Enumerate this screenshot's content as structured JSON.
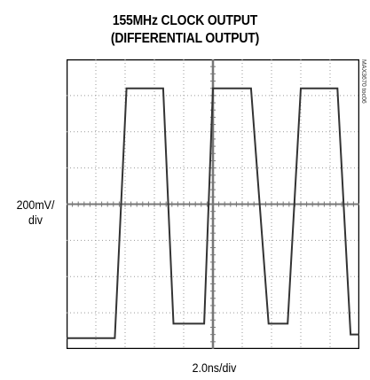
{
  "chart_data": {
    "type": "line",
    "title": "155MHz CLOCK OUTPUT",
    "subtitle": "(DIFFERENTIAL OUTPUT)",
    "ylabel": "200mV/\ndiv",
    "xlabel": "2.0ns/div",
    "watermark": "MAX3670 toc06",
    "grid": true,
    "grid_divisions": {
      "x": 10,
      "y": 8
    },
    "xlim_div": [
      0,
      10
    ],
    "ylim_div": [
      -4,
      4
    ],
    "series": [
      {
        "x_div": [
          0,
          0.95,
          1.65,
          2.05,
          2.3,
          3.3,
          3.65,
          4.4,
          4.7,
          5.0,
          5.3,
          6.3,
          6.9,
          7.55,
          8.0,
          8.25,
          9.25,
          9.7,
          10.0
        ],
        "y_div": [
          -3.7,
          -3.7,
          -3.7,
          3.2,
          3.2,
          3.2,
          -3.3,
          -3.3,
          -3.3,
          3.2,
          3.2,
          3.2,
          -3.3,
          -3.3,
          3.2,
          3.2,
          3.2,
          -3.6,
          -3.6
        ]
      }
    ],
    "colors": {
      "trace": "#333333",
      "grid": "#9a9a9a",
      "axis": "#777777",
      "frame": "#000000"
    }
  }
}
